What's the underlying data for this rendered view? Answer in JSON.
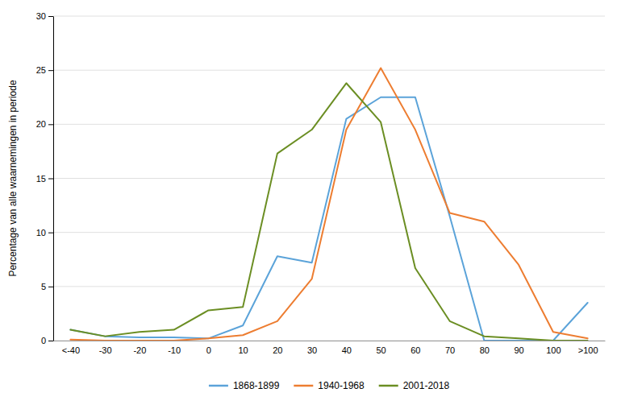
{
  "chart_data": {
    "type": "line",
    "categories": [
      "<-40",
      "-30",
      "-20",
      "-10",
      "0",
      "10",
      "20",
      "30",
      "40",
      "50",
      "60",
      "70",
      "80",
      "90",
      "100",
      ">100"
    ],
    "series": [
      {
        "name": "1868-1899",
        "color": "#5BA3D9",
        "values": [
          1.0,
          0.4,
          0.3,
          0.3,
          0.2,
          1.4,
          7.8,
          7.2,
          20.5,
          22.5,
          22.5,
          11.5,
          0.0,
          0.0,
          0.0,
          3.5
        ]
      },
      {
        "name": "1940-1968",
        "color": "#ED7D31",
        "values": [
          0.1,
          0.0,
          0.0,
          0.0,
          0.2,
          0.5,
          1.8,
          5.7,
          19.5,
          25.2,
          19.5,
          11.8,
          11.0,
          7.0,
          0.8,
          0.2
        ]
      },
      {
        "name": "2001-2018",
        "color": "#6B8E23",
        "values": [
          1.0,
          0.4,
          0.8,
          1.0,
          2.8,
          3.1,
          17.3,
          19.5,
          23.8,
          20.2,
          6.7,
          1.8,
          0.4,
          0.2,
          0.0,
          0.0
        ]
      }
    ],
    "y_label": "Percentage van alle waarnemingen in periode",
    "ylim": [
      0,
      30
    ],
    "yticks": [
      0,
      5,
      10,
      15,
      20,
      25,
      30
    ],
    "grid": true,
    "legend": "bottom"
  }
}
